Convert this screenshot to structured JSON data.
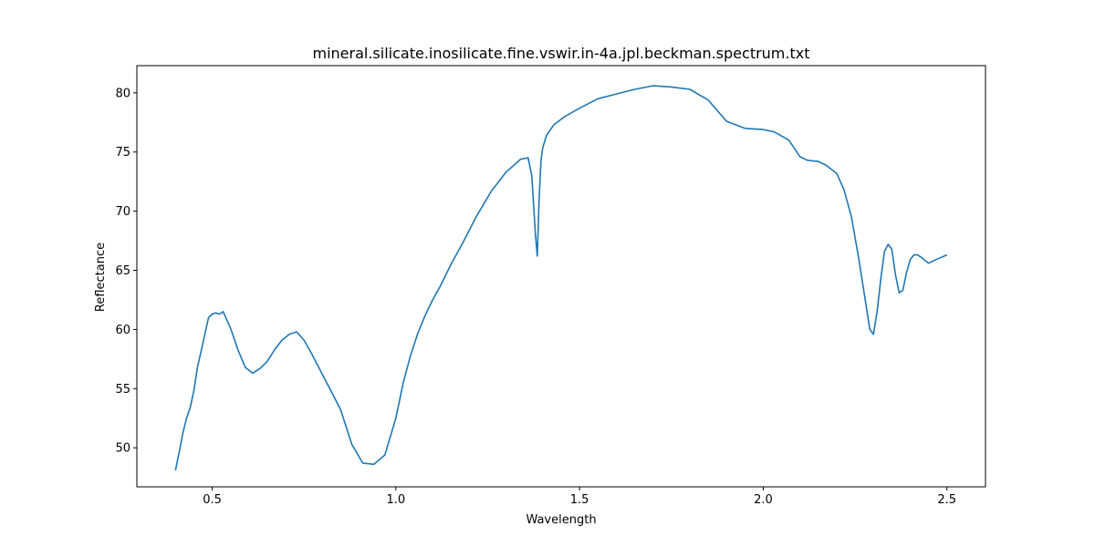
{
  "chart_data": {
    "type": "line",
    "title": "mineral.silicate.inosilicate.fine.vswir.in-4a.jpl.beckman.spectrum.txt",
    "xlabel": "Wavelength",
    "ylabel": "Reflectance",
    "xlim": [
      0.295,
      2.605
    ],
    "ylim": [
      46.7,
      82.3
    ],
    "xticks": [
      0.5,
      1.0,
      1.5,
      2.0,
      2.5
    ],
    "xtick_labels": [
      "0.5",
      "1.0",
      "1.5",
      "2.0",
      "2.5"
    ],
    "yticks": [
      50,
      55,
      60,
      65,
      70,
      75,
      80
    ],
    "ytick_labels": [
      "50",
      "55",
      "60",
      "65",
      "70",
      "75",
      "80"
    ],
    "grid": false,
    "legend": "none",
    "series": [
      {
        "color": "#1f77b4",
        "x": [
          0.4,
          0.41,
          0.42,
          0.43,
          0.44,
          0.45,
          0.46,
          0.47,
          0.48,
          0.49,
          0.5,
          0.51,
          0.52,
          0.53,
          0.55,
          0.57,
          0.59,
          0.61,
          0.63,
          0.65,
          0.67,
          0.69,
          0.71,
          0.73,
          0.75,
          0.77,
          0.79,
          0.8,
          0.82,
          0.85,
          0.88,
          0.91,
          0.94,
          0.97,
          1.0,
          1.02,
          1.04,
          1.06,
          1.08,
          1.1,
          1.12,
          1.15,
          1.18,
          1.22,
          1.26,
          1.3,
          1.34,
          1.36,
          1.37,
          1.38,
          1.385,
          1.39,
          1.395,
          1.4,
          1.41,
          1.43,
          1.46,
          1.5,
          1.55,
          1.6,
          1.65,
          1.7,
          1.75,
          1.8,
          1.85,
          1.9,
          1.95,
          2.0,
          2.03,
          2.07,
          2.1,
          2.12,
          2.15,
          2.17,
          2.2,
          2.22,
          2.24,
          2.26,
          2.28,
          2.29,
          2.3,
          2.31,
          2.32,
          2.33,
          2.34,
          2.35,
          2.36,
          2.37,
          2.38,
          2.39,
          2.4,
          2.41,
          2.42,
          2.43,
          2.45,
          2.47,
          2.5
        ],
        "y": [
          48.1,
          49.6,
          51.2,
          52.5,
          53.4,
          54.8,
          56.8,
          58.2,
          59.6,
          61.0,
          61.3,
          61.4,
          61.3,
          61.5,
          60.1,
          58.3,
          56.8,
          56.3,
          56.7,
          57.3,
          58.3,
          59.1,
          59.6,
          59.8,
          59.1,
          58.0,
          56.8,
          56.2,
          55.0,
          53.2,
          50.3,
          48.7,
          48.6,
          49.4,
          52.5,
          55.5,
          57.8,
          59.7,
          61.2,
          62.5,
          63.6,
          65.5,
          67.2,
          69.6,
          71.7,
          73.3,
          74.4,
          74.5,
          73.0,
          68.0,
          66.2,
          71.0,
          74.3,
          75.4,
          76.4,
          77.3,
          78.0,
          78.7,
          79.5,
          79.9,
          80.3,
          80.6,
          80.5,
          80.3,
          79.4,
          77.6,
          77.0,
          76.9,
          76.7,
          76.0,
          74.6,
          74.3,
          74.2,
          73.9,
          73.2,
          71.8,
          69.5,
          66.0,
          62.0,
          60.0,
          59.6,
          61.5,
          64.3,
          66.6,
          67.2,
          66.8,
          64.6,
          63.1,
          63.3,
          64.8,
          65.9,
          66.3,
          66.3,
          66.1,
          65.6,
          65.9,
          66.3
        ]
      }
    ]
  }
}
